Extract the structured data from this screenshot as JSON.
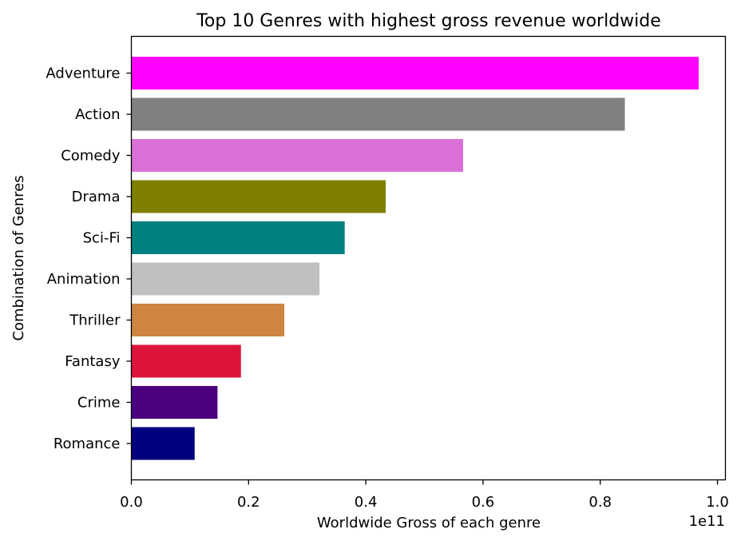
{
  "chart_data": {
    "type": "bar",
    "orientation": "horizontal",
    "title": "Top 10 Genres with highest gross revenue worldwide",
    "xlabel": "Worldwide Gross of each genre",
    "ylabel": "Combination of Genres",
    "x_offset_label": "1e11",
    "x_scale": 100000000000,
    "xlim": [
      0,
      1.0136
    ],
    "xticks": [
      0.0,
      0.2,
      0.4,
      0.6,
      0.8,
      1.0
    ],
    "xtick_labels": [
      "0.0",
      "0.2",
      "0.4",
      "0.6",
      "0.8",
      "1.0"
    ],
    "grid": false,
    "legend": "none",
    "categories": [
      "Adventure",
      "Action",
      "Comedy",
      "Drama",
      "Sci-Fi",
      "Animation",
      "Thriller",
      "Fantasy",
      "Crime",
      "Romance"
    ],
    "values": [
      0.968,
      0.842,
      0.566,
      0.434,
      0.364,
      0.321,
      0.261,
      0.187,
      0.147,
      0.108
    ],
    "colors": [
      "#ff00ff",
      "#808080",
      "#da70d6",
      "#808000",
      "#008080",
      "#c0c0c0",
      "#cd853f",
      "#dc143c",
      "#4b0082",
      "#000080"
    ]
  }
}
